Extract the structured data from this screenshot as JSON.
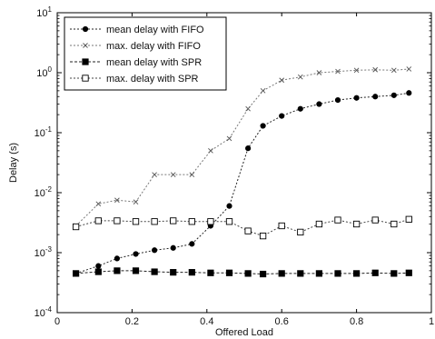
{
  "chart_data": {
    "type": "line",
    "xlabel": "Offered Load",
    "ylabel": "Delay (s)",
    "xlim": [
      0,
      1
    ],
    "ylim": [
      0.0001,
      10
    ],
    "yscale": "log",
    "grid": false,
    "legend_position": "top-left",
    "x_ticks": [
      "0",
      "0.2",
      "0.4",
      "0.6",
      "0.8",
      "1"
    ],
    "y_tick_exponents": [
      "-4",
      "-3",
      "-2",
      "-1",
      "0",
      "1"
    ],
    "series": [
      {
        "name": "mean delay with FIFO",
        "marker": "filled-circle",
        "x": [
          0.05,
          0.11,
          0.16,
          0.21,
          0.26,
          0.31,
          0.36,
          0.41,
          0.46,
          0.51,
          0.55,
          0.6,
          0.65,
          0.7,
          0.75,
          0.8,
          0.85,
          0.9,
          0.94
        ],
        "y": [
          0.00045,
          0.0006,
          0.0008,
          0.00095,
          0.0011,
          0.0012,
          0.0014,
          0.0028,
          0.006,
          0.055,
          0.13,
          0.19,
          0.25,
          0.3,
          0.35,
          0.38,
          0.4,
          0.42,
          0.46
        ]
      },
      {
        "name": "max. delay with FIFO",
        "marker": "x",
        "x": [
          0.05,
          0.11,
          0.16,
          0.21,
          0.26,
          0.31,
          0.36,
          0.41,
          0.46,
          0.51,
          0.55,
          0.6,
          0.65,
          0.7,
          0.75,
          0.8,
          0.85,
          0.9,
          0.94
        ],
        "y": [
          0.0028,
          0.0065,
          0.0075,
          0.007,
          0.02,
          0.02,
          0.02,
          0.05,
          0.08,
          0.25,
          0.5,
          0.75,
          0.85,
          1.0,
          1.05,
          1.1,
          1.12,
          1.1,
          1.15
        ]
      },
      {
        "name": "mean delay with SPR",
        "marker": "filled-square",
        "x": [
          0.05,
          0.11,
          0.16,
          0.21,
          0.26,
          0.31,
          0.36,
          0.41,
          0.46,
          0.51,
          0.55,
          0.6,
          0.65,
          0.7,
          0.75,
          0.8,
          0.85,
          0.9,
          0.94
        ],
        "y": [
          0.00045,
          0.00048,
          0.0005,
          0.0005,
          0.00048,
          0.00047,
          0.00047,
          0.00046,
          0.00046,
          0.00045,
          0.00044,
          0.00045,
          0.00045,
          0.00045,
          0.00045,
          0.00045,
          0.00046,
          0.00045,
          0.00046
        ]
      },
      {
        "name": "max. delay with SPR",
        "marker": "open-square",
        "x": [
          0.05,
          0.11,
          0.16,
          0.21,
          0.26,
          0.31,
          0.36,
          0.41,
          0.46,
          0.51,
          0.55,
          0.6,
          0.65,
          0.7,
          0.75,
          0.8,
          0.85,
          0.9,
          0.94
        ],
        "y": [
          0.0027,
          0.0034,
          0.0034,
          0.0033,
          0.0033,
          0.0034,
          0.0033,
          0.0033,
          0.0033,
          0.0023,
          0.0019,
          0.0028,
          0.0022,
          0.003,
          0.0035,
          0.003,
          0.0035,
          0.003,
          0.0036
        ]
      }
    ]
  }
}
